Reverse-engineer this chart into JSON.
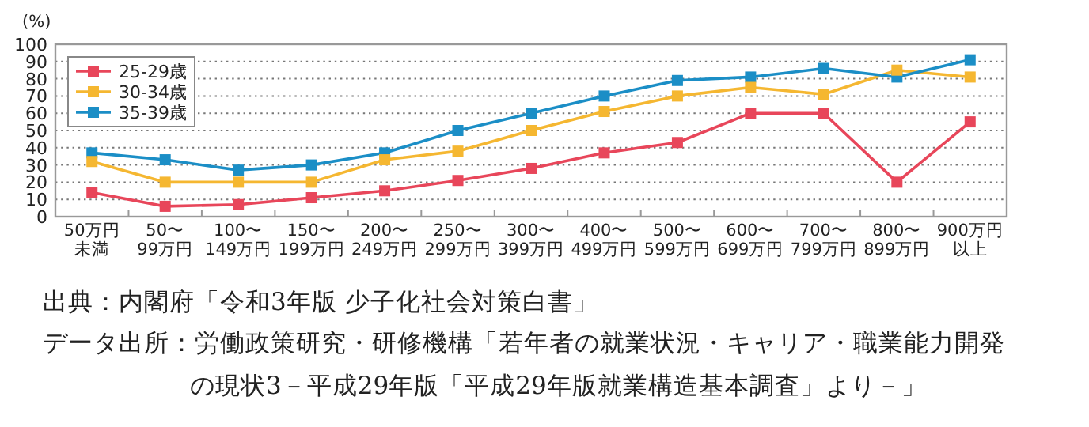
{
  "chart_data": {
    "type": "line",
    "ylabel": "(%)",
    "categories": [
      "50万円未満",
      "50〜\n99万円",
      "100〜\n149万円",
      "150〜\n199万円",
      "200〜\n249万円",
      "250〜\n299万円",
      "300〜\n399万円",
      "400〜\n499万円",
      "500〜\n599万円",
      "600〜\n699万円",
      "700〜\n799万円",
      "800〜\n899万円",
      "900万円以上"
    ],
    "series": [
      {
        "name": "25-29歳",
        "color": "#e8465a",
        "values": [
          14,
          6,
          7,
          11,
          15,
          21,
          28,
          37,
          43,
          60,
          60,
          20,
          55
        ]
      },
      {
        "name": "30-34歳",
        "color": "#f5b731",
        "values": [
          32,
          20,
          20,
          20,
          33,
          38,
          50,
          61,
          70,
          75,
          71,
          85,
          81
        ]
      },
      {
        "name": "35-39歳",
        "color": "#1b8ec6",
        "values": [
          37,
          33,
          27,
          30,
          37,
          50,
          60,
          70,
          79,
          81,
          86,
          81,
          91
        ]
      }
    ],
    "ylim": [
      0,
      100
    ],
    "yticks": [
      0,
      10,
      20,
      30,
      40,
      50,
      60,
      70,
      80,
      90,
      100
    ],
    "grid": "y",
    "legend": "top left",
    "marker": "square",
    "line_style": "solid",
    "annotations": [
      "出典：内閣府「令和3年版 少子化社会対策白書」",
      "データ出所：労働政策研究・研修機構「若年者の就業状況・キャリア・職業能力開発の現状3－平成29年版「平成29年版就業構造基本調査」より－」"
    ]
  }
}
